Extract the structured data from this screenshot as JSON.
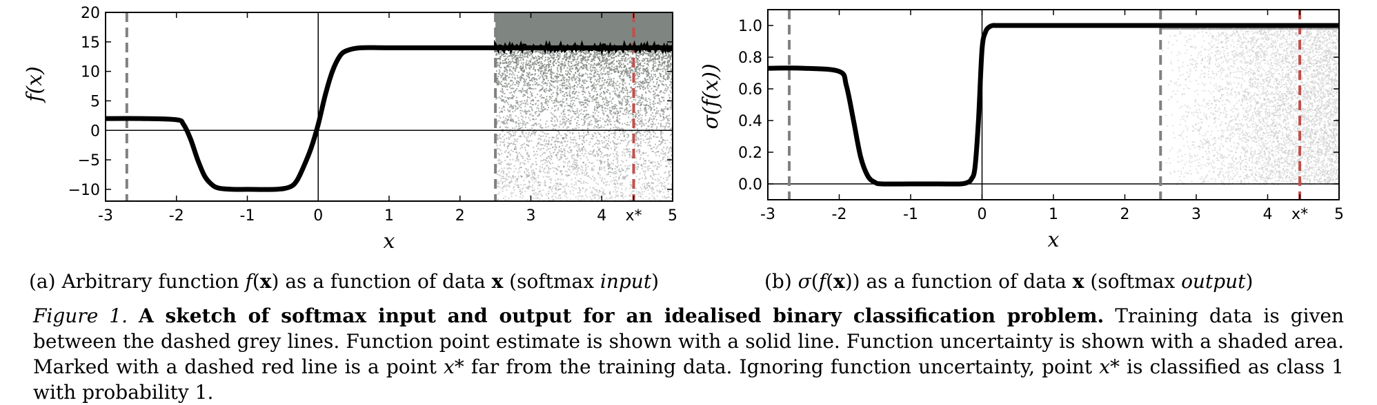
{
  "chart_data": [
    {
      "type": "line",
      "panel": "a",
      "xlabel": "x",
      "ylabel": "f(x)",
      "xlim": [
        -3,
        5
      ],
      "ylim": [
        -12,
        20
      ],
      "xticks": [
        "-3",
        "-2",
        "-1",
        "0",
        "1",
        "2",
        "3",
        "4",
        "x*",
        "5"
      ],
      "xtick_values": [
        -3,
        -2,
        -1,
        0,
        1,
        2,
        3,
        4,
        4.45,
        5
      ],
      "yticks": [
        "20",
        "15",
        "10",
        "5",
        "0",
        "−10"
      ],
      "ytick_values": [
        20,
        15,
        10,
        5,
        0,
        -10
      ],
      "yticks_extra": {
        "label": "−5",
        "value": -5
      },
      "grid": false,
      "zero_lines": true,
      "training_region": [
        -2.7,
        2.5
      ],
      "test_point": 4.45,
      "series": [
        {
          "values_x": [
            -3,
            -2.5,
            -2.0,
            -1.9,
            -1.8,
            -1.7,
            -1.6,
            -1.5,
            -1.4,
            -1.2,
            -1.0,
            -0.6,
            -0.4,
            -0.3,
            -0.2,
            -0.1,
            0.0,
            0.1,
            0.2,
            0.3,
            0.4,
            0.6,
            1.0,
            2.0,
            2.5,
            3.0,
            4.0,
            5.0
          ],
          "values_y": [
            2,
            2,
            1.8,
            1.0,
            -1.5,
            -5.0,
            -7.8,
            -9.2,
            -9.8,
            -10,
            -10,
            -10,
            -9.6,
            -8.5,
            -6.0,
            -3.0,
            1.0,
            6.0,
            10.0,
            12.5,
            13.5,
            14.0,
            14.0,
            14.0,
            14.0,
            14.0,
            14.0,
            14.0
          ]
        }
      ],
      "uncertainty": {
        "x_range": [
          2.5,
          5
        ],
        "lower": -12,
        "upper": 20
      },
      "colors": {
        "line": "#000000",
        "train_lines": "#808080",
        "test_line": "#c0504d",
        "uncertainty": "#7f8580"
      }
    },
    {
      "type": "line",
      "panel": "b",
      "xlabel": "x",
      "ylabel": "σ(f(x))",
      "xlim": [
        -3,
        5
      ],
      "ylim": [
        -0.1,
        1.1
      ],
      "xticks": [
        "-3",
        "-2",
        "-1",
        "0",
        "1",
        "2",
        "3",
        "4",
        "x*",
        "5"
      ],
      "xtick_values": [
        -3,
        -2,
        -1,
        0,
        1,
        2,
        3,
        4,
        4.45,
        5
      ],
      "yticks": [
        "1.0",
        "0.8",
        "0.6",
        "0.4",
        "0.2",
        "0.0"
      ],
      "ytick_values": [
        1.0,
        0.8,
        0.6,
        0.4,
        0.2,
        0.0
      ],
      "grid": false,
      "zero_lines": true,
      "training_region": [
        -2.7,
        2.5
      ],
      "test_point": 4.45,
      "series": [
        {
          "values_x": [
            -3,
            -2.5,
            -2.0,
            -1.9,
            -1.8,
            -1.7,
            -1.6,
            -1.5,
            -1.4,
            -1.0,
            -0.6,
            -0.3,
            -0.2,
            -0.15,
            -0.1,
            -0.05,
            0.0,
            0.05,
            0.1,
            0.15,
            0.2,
            0.4,
            1.0,
            2.0,
            3.0,
            4.0,
            5.0
          ],
          "values_y": [
            0.73,
            0.73,
            0.71,
            0.62,
            0.4,
            0.17,
            0.05,
            0.01,
            0.0,
            0.0,
            0.0,
            0.0,
            0.01,
            0.03,
            0.1,
            0.4,
            0.85,
            0.96,
            0.99,
            1.0,
            1.0,
            1.0,
            1.0,
            1.0,
            1.0,
            1.0,
            1.0
          ]
        }
      ],
      "uncertainty": {
        "x_range": [
          2.5,
          5
        ],
        "lower": 0.0,
        "upper": 1.0
      },
      "colors": {
        "line": "#000000",
        "train_lines": "#808080",
        "test_line": "#c0504d",
        "uncertainty": "#c8c8c8"
      }
    }
  ],
  "captions": {
    "a": {
      "prefix": "(a) Arbitrary function ",
      "f": "f",
      "open": "(",
      "x": "x",
      "close": ")",
      "middle": " as a function of data ",
      "x2": "x",
      "paren_open": " (softmax ",
      "em": "input",
      "paren_close": ")"
    },
    "b": {
      "prefix": "(b) ",
      "sigma": "σ",
      "open": "(",
      "f": "f",
      "open2": "(",
      "x": "x",
      "close": "))",
      "middle": " as a function of data ",
      "x2": "x",
      "paren_open": " (softmax ",
      "em": "output",
      "paren_close": ")"
    },
    "figure": {
      "num": "Figure 1.",
      "title": "A sketch of softmax input and output for an idealised binary classification problem.",
      "text1": " Training data is given between the dashed grey lines. Function point estimate is shown with a solid line. Function uncertainty is shown with a shaded area. Marked with a dashed red line is a point ",
      "xstar1": "x*",
      "text2": " far from the training data. Ignoring function uncertainty, point ",
      "xstar2": "x*",
      "text3": " is classified as class 1 with probability 1."
    }
  }
}
